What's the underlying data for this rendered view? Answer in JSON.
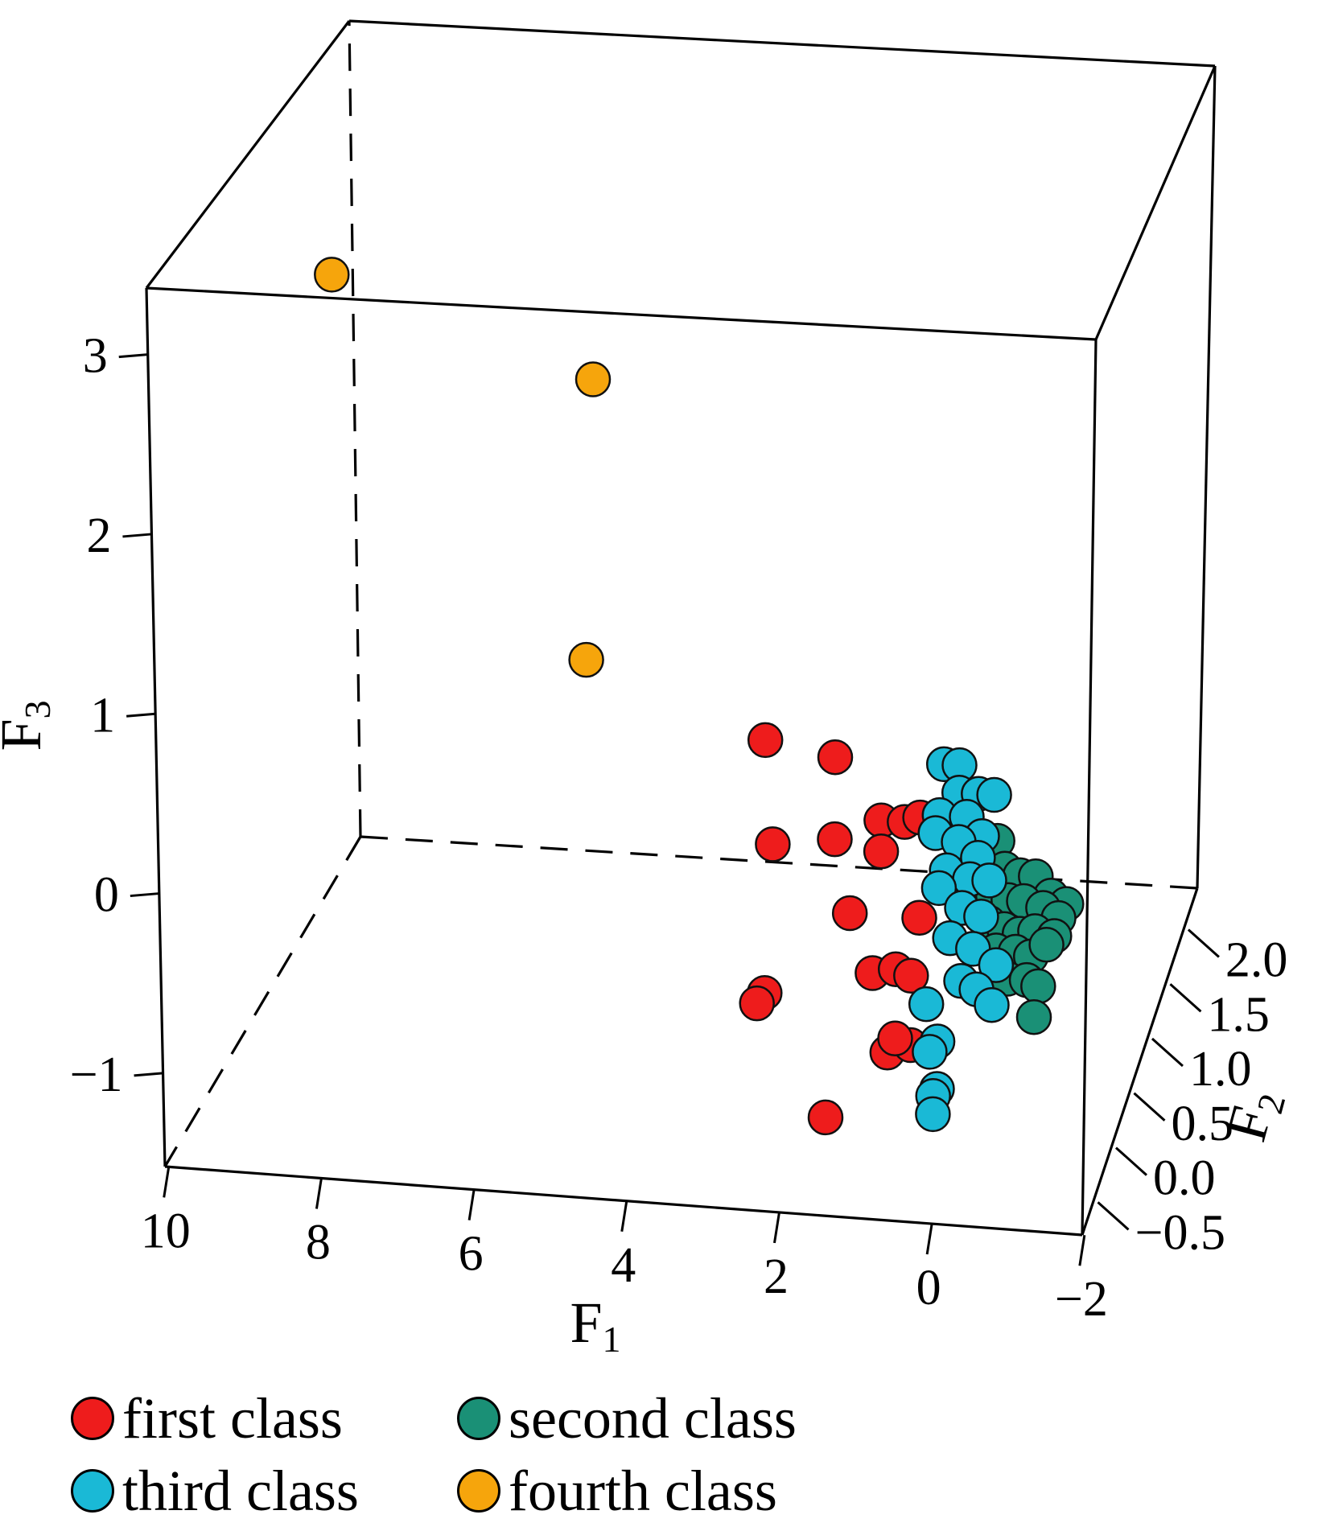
{
  "chart_data": {
    "type": "scatter",
    "projection": "3d",
    "axes": {
      "x": {
        "label": "F",
        "label_sub": "1",
        "ticks": [
          "10",
          "8",
          "6",
          "4",
          "2",
          "0",
          "−2"
        ]
      },
      "y": {
        "label": "F",
        "label_sub": "2",
        "ticks": [
          "−0.5",
          "0.0",
          "0.5",
          "1.0",
          "1.5",
          "2.0"
        ]
      },
      "z": {
        "label": "F",
        "label_sub": "3",
        "ticks": [
          "−1",
          "0",
          "1",
          "2",
          "3"
        ]
      }
    },
    "series": [
      {
        "name": "first class",
        "color": "#ee1c1c",
        "points": [
          [
            2.2,
            1.07
          ],
          [
            1.3,
            1.0
          ],
          [
            0.7,
            0.67
          ],
          [
            0.4,
            0.67
          ],
          [
            0.2,
            0.7
          ],
          [
            2.1,
            0.5
          ],
          [
            1.3,
            0.55
          ],
          [
            0.7,
            0.5
          ],
          [
            1.1,
            0.15
          ],
          [
            0.2,
            0.15
          ],
          [
            0.8,
            -0.17
          ],
          [
            0.5,
            -0.14
          ],
          [
            0.3,
            -0.17
          ],
          [
            2.2,
            -0.32
          ],
          [
            2.3,
            -0.38
          ],
          [
            0.6,
            -0.6
          ],
          [
            0.3,
            -0.55
          ],
          [
            0.5,
            -0.52
          ],
          [
            1.4,
            -0.98
          ]
        ]
      },
      {
        "name": "second class",
        "color": "#1a9076",
        "points": [
          [
            -0.8,
            0.6
          ],
          [
            -0.9,
            0.45
          ],
          [
            -1.1,
            0.42
          ],
          [
            -1.3,
            0.42
          ],
          [
            -1.5,
            0.32
          ],
          [
            -1.7,
            0.28
          ],
          [
            -0.75,
            0.3
          ],
          [
            -0.95,
            0.28
          ],
          [
            -1.15,
            0.28
          ],
          [
            -1.4,
            0.25
          ],
          [
            -1.6,
            0.2
          ],
          [
            -0.7,
            0.15
          ],
          [
            -0.9,
            0.12
          ],
          [
            -1.1,
            0.1
          ],
          [
            -1.3,
            0.12
          ],
          [
            -1.55,
            0.1
          ],
          [
            -0.8,
            0.0
          ],
          [
            -1.05,
            0.0
          ],
          [
            -1.25,
            -0.02
          ],
          [
            -1.45,
            0.05
          ],
          [
            -0.95,
            -0.15
          ],
          [
            -1.2,
            -0.15
          ],
          [
            -1.35,
            -0.18
          ],
          [
            -1.3,
            -0.35
          ]
        ]
      },
      {
        "name": "third class",
        "color": "#1ab9d6",
        "points": [
          [
            -0.1,
            1.0
          ],
          [
            -0.3,
            1.0
          ],
          [
            -0.3,
            0.85
          ],
          [
            -0.55,
            0.85
          ],
          [
            -0.75,
            0.85
          ],
          [
            -0.05,
            0.72
          ],
          [
            -0.4,
            0.72
          ],
          [
            -0.6,
            0.62
          ],
          [
            0.0,
            0.62
          ],
          [
            -0.3,
            0.58
          ],
          [
            -0.55,
            0.5
          ],
          [
            -0.15,
            0.42
          ],
          [
            -0.45,
            0.38
          ],
          [
            -0.7,
            0.38
          ],
          [
            -0.05,
            0.32
          ],
          [
            -0.35,
            0.22
          ],
          [
            -0.6,
            0.18
          ],
          [
            -0.2,
            0.05
          ],
          [
            -0.5,
            0.0
          ],
          [
            -0.8,
            -0.08
          ],
          [
            -0.35,
            -0.18
          ],
          [
            -0.55,
            -0.22
          ],
          [
            -0.75,
            -0.3
          ],
          [
            0.1,
            -0.32
          ],
          [
            -0.05,
            -0.52
          ],
          [
            0.05,
            -0.58
          ],
          [
            -0.05,
            -0.78
          ],
          [
            0.0,
            -0.82
          ],
          [
            0.0,
            -0.92
          ]
        ]
      },
      {
        "name": "fourth class",
        "color": "#f6a50c",
        "points": [
          [
            7.7,
            3.5
          ],
          [
            4.4,
            3.0
          ],
          [
            4.5,
            1.45
          ]
        ]
      }
    ],
    "legend": {
      "position": "bottom",
      "columns": 2
    },
    "grid": false
  },
  "legend_items": [
    "first class",
    "second class",
    "third class",
    "fourth class"
  ]
}
